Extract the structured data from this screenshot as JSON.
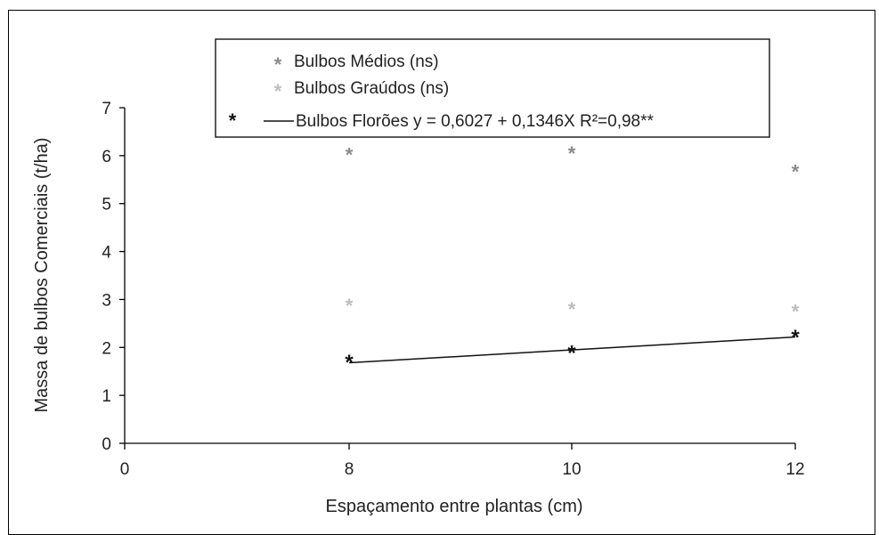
{
  "chart_data": {
    "type": "scatter",
    "title": "",
    "xlabel": "Espaçamento entre plantas (cm)",
    "ylabel": "Massa de bulbos Comerciais (t/ha)",
    "xlim": [
      0,
      12
    ],
    "ylim": [
      0,
      7
    ],
    "x_ticks": [
      "0",
      "8",
      "10",
      "12"
    ],
    "y_ticks": [
      "0",
      "1",
      "2",
      "3",
      "4",
      "5",
      "6",
      "7"
    ],
    "grid": false,
    "legend_position": "top",
    "series": [
      {
        "name": "Bulbos Médios (ns)",
        "color": "#8a8a8a",
        "marker": "asterisk",
        "x": [
          8,
          10,
          12
        ],
        "y": [
          6.05,
          6.08,
          5.7
        ]
      },
      {
        "name": "Bulbos Graúdos (ns)",
        "color": "#bdbdbd",
        "marker": "asterisk",
        "x": [
          8,
          10,
          12
        ],
        "y": [
          2.9,
          2.83,
          2.78
        ]
      },
      {
        "name": "Bulbos Florões",
        "color": "#111111",
        "marker": "asterisk",
        "x": [
          8,
          10,
          12
        ],
        "y": [
          1.73,
          1.92,
          2.25
        ]
      }
    ],
    "trendline": {
      "series": "Bulbos Florões",
      "label": "Bulbos Florões y = 0,6027 + 0,1346X R²=0,98**",
      "intercept": 0.6027,
      "slope": 0.1346,
      "x_range": [
        8,
        12
      ],
      "color": "#111111"
    }
  }
}
